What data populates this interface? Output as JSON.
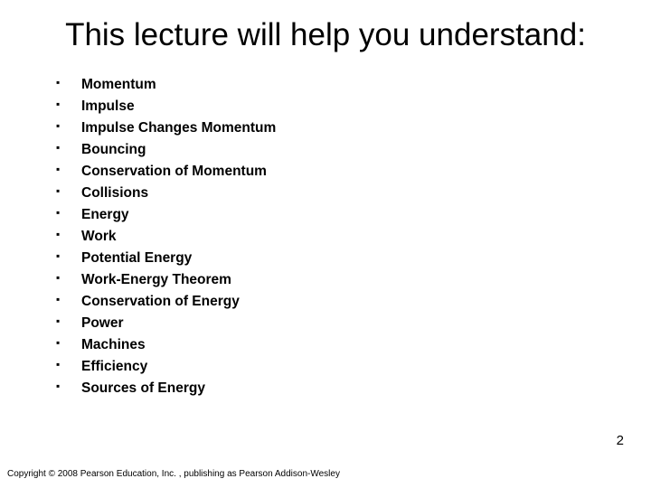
{
  "title": "This lecture will help you understand:",
  "bullets": [
    "Momentum",
    "Impulse",
    "Impulse Changes Momentum",
    "Bouncing",
    "Conservation of Momentum",
    "Collisions",
    "Energy",
    "Work",
    "Potential Energy",
    "Work-Energy Theorem",
    "Conservation of Energy",
    "Power",
    "Machines",
    "Efficiency",
    "Sources of Energy"
  ],
  "page_number": "2",
  "copyright": "Copyright © 2008 Pearson Education, Inc. , publishing as Pearson Addison-Wesley",
  "colors": {
    "background": "#ffffff",
    "text": "#000000"
  },
  "fonts": {
    "title_size": 35,
    "bullet_size": 15.5,
    "bullet_weight": 700,
    "copyright_size": 10,
    "page_number_size": 15
  }
}
